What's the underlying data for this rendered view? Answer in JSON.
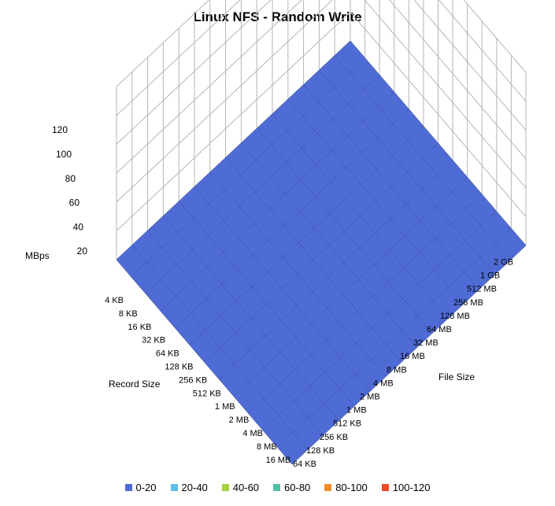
{
  "chart_data": {
    "type": "surface",
    "title": "Linux NFS - Random Write",
    "zlabel": "MBps",
    "record_axis_label": "Record Size",
    "file_axis_label": "File Size",
    "zlim": [
      0,
      120
    ],
    "z_ticks": [
      20,
      40,
      60,
      80,
      100,
      120
    ],
    "record_sizes": [
      "4 KB",
      "8 KB",
      "16 KB",
      "32 KB",
      "64 KB",
      "128 KB",
      "256 KB",
      "512 KB",
      "1 MB",
      "2 MB",
      "4 MB",
      "8 MB",
      "16 MB"
    ],
    "file_sizes": [
      "64 KB",
      "128 KB",
      "256 KB",
      "512 KB",
      "1 MB",
      "2 MB",
      "4 MB",
      "8 MB",
      "16 MB",
      "32 MB",
      "64 MB",
      "128 MB",
      "256 MB",
      "512 MB",
      "1 GB",
      "2 GB"
    ],
    "legend": [
      {
        "label": "0-20",
        "color": "#4F6CD6"
      },
      {
        "label": "20-40",
        "color": "#5BC0E8"
      },
      {
        "label": "40-60",
        "color": "#A6D23F"
      },
      {
        "label": "60-80",
        "color": "#4FC3A6"
      },
      {
        "label": "80-100",
        "color": "#F28C28"
      },
      {
        "label": "100-120",
        "color": "#F04A2A"
      }
    ],
    "grid": true,
    "legend_position": "bottom",
    "values": [
      [
        0,
        0,
        0,
        0,
        0,
        0,
        0,
        0,
        0,
        0,
        0,
        0,
        0,
        0,
        0,
        0
      ],
      [
        0,
        0,
        0,
        0,
        0,
        0,
        0,
        0,
        0,
        0,
        0,
        0,
        0,
        0,
        0,
        0
      ],
      [
        0,
        0,
        0,
        0,
        0,
        0,
        0,
        0,
        0,
        0,
        0,
        0,
        0,
        0,
        0,
        0
      ],
      [
        0,
        0,
        0,
        0,
        0,
        0,
        0,
        0,
        0,
        0,
        0,
        0,
        0,
        0,
        0,
        0
      ],
      [
        0,
        0,
        0,
        0,
        0,
        0,
        0,
        0,
        0,
        0,
        0,
        0,
        0,
        0,
        0,
        0
      ],
      [
        0,
        0,
        0,
        0,
        0,
        0,
        0,
        0,
        0,
        0,
        0,
        0,
        0,
        0,
        0,
        0
      ],
      [
        0,
        0,
        0,
        0,
        0,
        0,
        0,
        0,
        0,
        0,
        0,
        0,
        0,
        0,
        0,
        0
      ],
      [
        0,
        0,
        0,
        0,
        0,
        0,
        0,
        0,
        0,
        0,
        0,
        0,
        0,
        0,
        0,
        0
      ],
      [
        0,
        0,
        0,
        0,
        0,
        0,
        0,
        0,
        0,
        0,
        0,
        0,
        0,
        0,
        0,
        0
      ],
      [
        0,
        0,
        0,
        0,
        0,
        0,
        0,
        0,
        0,
        0,
        0,
        0,
        0,
        0,
        0,
        0
      ],
      [
        0,
        0,
        0,
        0,
        0,
        0,
        0,
        0,
        0,
        0,
        0,
        0,
        0,
        0,
        0,
        0
      ],
      [
        0,
        0,
        0,
        0,
        0,
        0,
        0,
        0,
        0,
        0,
        0,
        0,
        0,
        0,
        0,
        0
      ],
      [
        0,
        0,
        0,
        0,
        0,
        0,
        0,
        0,
        0,
        0,
        0,
        0,
        0,
        0,
        0,
        0
      ]
    ],
    "values_note": ""
  }
}
